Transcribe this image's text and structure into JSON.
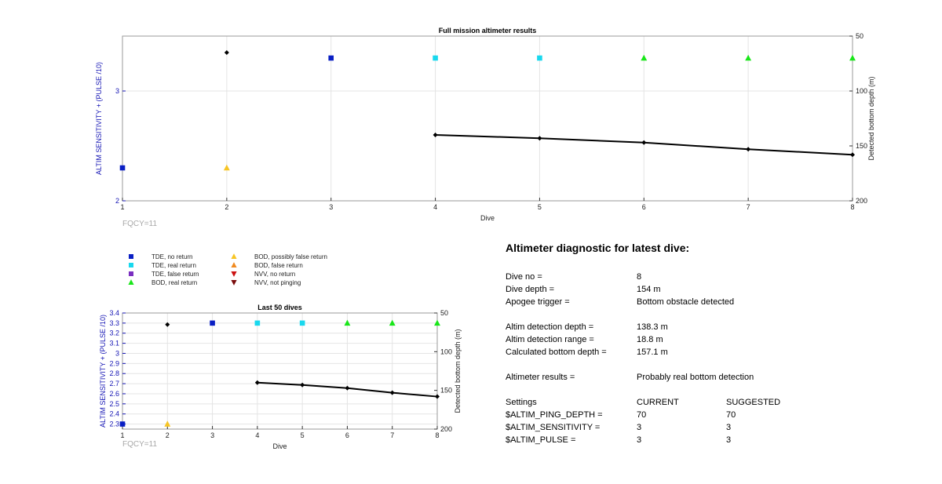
{
  "chart_data": [
    {
      "type": "scatter",
      "title": "Full mission altimeter results",
      "xlabel": "Dive",
      "ylabel": "ALTIM SENSITIVITY + (PULSE /10)",
      "y2label": "Detected bottom depth (m)",
      "xlim": [
        1,
        8
      ],
      "ylim": [
        2,
        3.5
      ],
      "y2lim": [
        200,
        50
      ],
      "xticks": [
        "1",
        "2",
        "3",
        "4",
        "5",
        "6",
        "7",
        "8"
      ],
      "yticks": [
        "2",
        "3"
      ],
      "y2ticks": [
        "50",
        "100",
        "150",
        "200"
      ],
      "annotation": "FQCY=11",
      "grid": true,
      "markers": [
        {
          "x": 1,
          "y": 2.3,
          "class": "TDE, no return"
        },
        {
          "x": 2,
          "y": 2.3,
          "class": "BOD, possibly false return"
        },
        {
          "x": 3,
          "y": 3.3,
          "class": "TDE, no return"
        },
        {
          "x": 4,
          "y": 3.3,
          "class": "TDE, real return"
        },
        {
          "x": 5,
          "y": 3.3,
          "class": "TDE, real return"
        },
        {
          "x": 6,
          "y": 3.3,
          "class": "BOD, real return"
        },
        {
          "x": 7,
          "y": 3.3,
          "class": "BOD, real return"
        },
        {
          "x": 8,
          "y": 3.3,
          "class": "BOD, real return"
        }
      ],
      "depth_series": {
        "x": [
          2,
          4,
          5,
          6,
          7,
          8
        ],
        "y": [
          65,
          140,
          143,
          147,
          153,
          158
        ]
      }
    },
    {
      "type": "scatter",
      "title": "Last 50 dives",
      "xlabel": "Dive",
      "ylabel": "ALTIM SENSITIVITY + (PULSE /10)",
      "y2label": "Detected bottom depth (m)",
      "xlim": [
        1,
        8
      ],
      "ylim": [
        2.25,
        3.4
      ],
      "y2lim": [
        200,
        50
      ],
      "xticks": [
        "1",
        "2",
        "3",
        "4",
        "5",
        "6",
        "7",
        "8"
      ],
      "yticks": [
        "2.3",
        "2.4",
        "2.5",
        "2.6",
        "2.7",
        "2.8",
        "2.9",
        "3",
        "3.1",
        "3.2",
        "3.3",
        "3.4"
      ],
      "y2ticks": [
        "50",
        "100",
        "150",
        "200"
      ],
      "annotation": "FQCY=11",
      "grid": true,
      "markers": [
        {
          "x": 1,
          "y": 2.3,
          "class": "TDE, no return"
        },
        {
          "x": 2,
          "y": 2.3,
          "class": "BOD, possibly false return"
        },
        {
          "x": 3,
          "y": 3.3,
          "class": "TDE, no return"
        },
        {
          "x": 4,
          "y": 3.3,
          "class": "TDE, real return"
        },
        {
          "x": 5,
          "y": 3.3,
          "class": "TDE, real return"
        },
        {
          "x": 6,
          "y": 3.3,
          "class": "BOD, real return"
        },
        {
          "x": 7,
          "y": 3.3,
          "class": "BOD, real return"
        },
        {
          "x": 8,
          "y": 3.3,
          "class": "BOD, real return"
        }
      ],
      "depth_series": {
        "x": [
          2,
          4,
          5,
          6,
          7,
          8
        ],
        "y": [
          65,
          140,
          143,
          147,
          153,
          158
        ]
      }
    }
  ],
  "legend": [
    {
      "label": "TDE, no return",
      "shape": "square",
      "color": "#0a1fc4"
    },
    {
      "label": "TDE, real return",
      "shape": "square",
      "color": "#19d8ee"
    },
    {
      "label": "TDE, false return",
      "shape": "square",
      "color": "#7a2fc0"
    },
    {
      "label": "BOD, real return",
      "shape": "triangle-up",
      "color": "#19e619"
    },
    {
      "label": "BOD, possibly false return",
      "shape": "triangle-up",
      "color": "#f7c525"
    },
    {
      "label": "BOD, false return",
      "shape": "triangle-up",
      "color": "#f08a20"
    },
    {
      "label": "NVV, no return",
      "shape": "triangle-down",
      "color": "#cc1111"
    },
    {
      "label": "NVV, not pinging",
      "shape": "triangle-down",
      "color": "#7a0c0c"
    }
  ],
  "colors": {
    "axis_left": "#1414b4",
    "depth_line": "#000000",
    "annotation": "#a8a8a8",
    "grid": "#e4e4e4"
  },
  "diagnostic": {
    "title": "Altimeter diagnostic for latest dive:",
    "dive_no_label": "Dive no =",
    "dive_no": "8",
    "dive_depth_label": "Dive depth =",
    "dive_depth": "154 m",
    "apogee_label": "Apogee trigger =",
    "apogee": "Bottom obstacle detected",
    "altim_depth_label": "Altim detection depth =",
    "altim_depth": "138.3 m",
    "altim_range_label": "Altim detection range =",
    "altim_range": "18.8 m",
    "calc_depth_label": "Calculated bottom depth =",
    "calc_depth": "157.1 m",
    "results_label": "Altimeter results =",
    "results": "Probably real bottom detection",
    "settings_label": "Settings",
    "current_label": "CURRENT",
    "suggested_label": "SUGGESTED",
    "settings": [
      {
        "name": "$ALTIM_PING_DEPTH =",
        "current": "70",
        "suggested": "70"
      },
      {
        "name": "$ALTIM_SENSITIVITY =",
        "current": "3",
        "suggested": "3"
      },
      {
        "name": "$ALTIM_PULSE =",
        "current": "3",
        "suggested": "3"
      }
    ]
  }
}
